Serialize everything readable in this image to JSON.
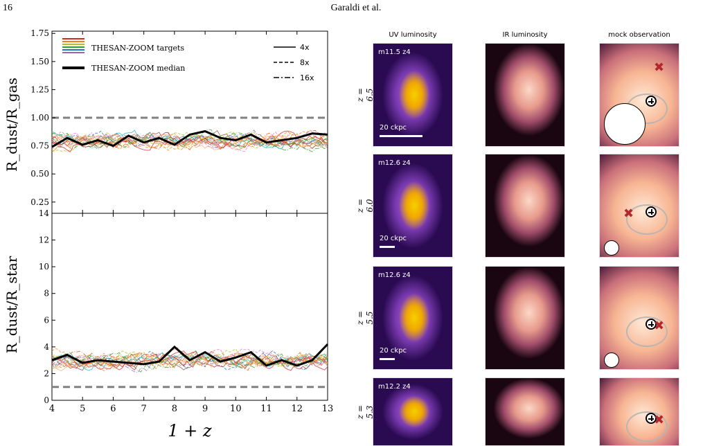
{
  "header": {
    "page_number": "16",
    "author": "Garaldi et al."
  },
  "colors": {
    "median": "#000000",
    "reference_dashed": "#808080",
    "targets": [
      "#d62728",
      "#ff7f0e",
      "#e6550d",
      "#fdae6b",
      "#bcbd22",
      "#2ca02c",
      "#17becf",
      "#1f77b4",
      "#9467bd",
      "#8c564b",
      "#e377c2",
      "#7f7f7f"
    ]
  },
  "figure_left": {
    "legend": {
      "targets_label": "THESAN-ZOOM targets",
      "median_label": "THESAN-ZOOM median",
      "res_labels": [
        "4x",
        "8x",
        "16x"
      ]
    },
    "x_axis": {
      "label": "1 + z",
      "ticks": [
        "4",
        "5",
        "6",
        "7",
        "8",
        "9",
        "10",
        "11",
        "12",
        "13"
      ]
    }
  },
  "chart_data": [
    {
      "type": "line",
      "ylabel": "R_dust/R_gas",
      "xlim": [
        4,
        13
      ],
      "ylim": [
        0.15,
        1.77
      ],
      "yticks": [
        "0.25",
        "0.50",
        "0.75",
        "1.00",
        "1.25",
        "1.50",
        "1.75"
      ],
      "reference_line": 1.0,
      "series": [
        {
          "name": "THESAN-ZOOM median",
          "x": [
            4,
            4.5,
            5,
            5.5,
            6,
            6.5,
            7,
            7.5,
            8,
            8.5,
            9,
            9.5,
            10,
            10.5,
            11,
            11.5,
            12,
            12.5,
            13
          ],
          "values": [
            0.74,
            0.82,
            0.76,
            0.8,
            0.75,
            0.84,
            0.78,
            0.82,
            0.76,
            0.85,
            0.88,
            0.82,
            0.8,
            0.85,
            0.78,
            0.8,
            0.82,
            0.86,
            0.85
          ]
        }
      ]
    },
    {
      "type": "line",
      "ylabel": "R_dust/R_star",
      "xlabel": "1 + z",
      "xlim": [
        4,
        13
      ],
      "ylim": [
        0,
        14
      ],
      "yticks": [
        "0",
        "2",
        "4",
        "6",
        "8",
        "10",
        "12",
        "14"
      ],
      "reference_line": 1.0,
      "series": [
        {
          "name": "THESAN-ZOOM median",
          "x": [
            4,
            4.5,
            5,
            5.5,
            6,
            6.5,
            7,
            7.5,
            8,
            8.5,
            9,
            9.5,
            10,
            10.5,
            11,
            11.5,
            12,
            12.5,
            13
          ],
          "values": [
            3.0,
            3.4,
            2.8,
            3.0,
            2.9,
            2.8,
            2.7,
            2.9,
            4.0,
            3.0,
            3.6,
            2.9,
            3.2,
            3.6,
            2.6,
            3.0,
            2.6,
            3.0,
            4.2
          ]
        }
      ]
    }
  ],
  "figure_right": {
    "column_titles": [
      "UV luminosity",
      "IR luminosity",
      "mock observation"
    ],
    "rows": [
      {
        "z_label": "z = 6.5",
        "halo_label": "m11.5 z4",
        "scale_label": "20 ckpc"
      },
      {
        "z_label": "z = 6.0",
        "halo_label": "m12.6 z4",
        "scale_label": "20 ckpc"
      },
      {
        "z_label": "z = 5.5",
        "halo_label": "m12.6 z4",
        "scale_label": "20 ckpc"
      },
      {
        "z_label": "z = 5.3",
        "halo_label": "m12.2 z4",
        "scale_label": ""
      }
    ]
  }
}
